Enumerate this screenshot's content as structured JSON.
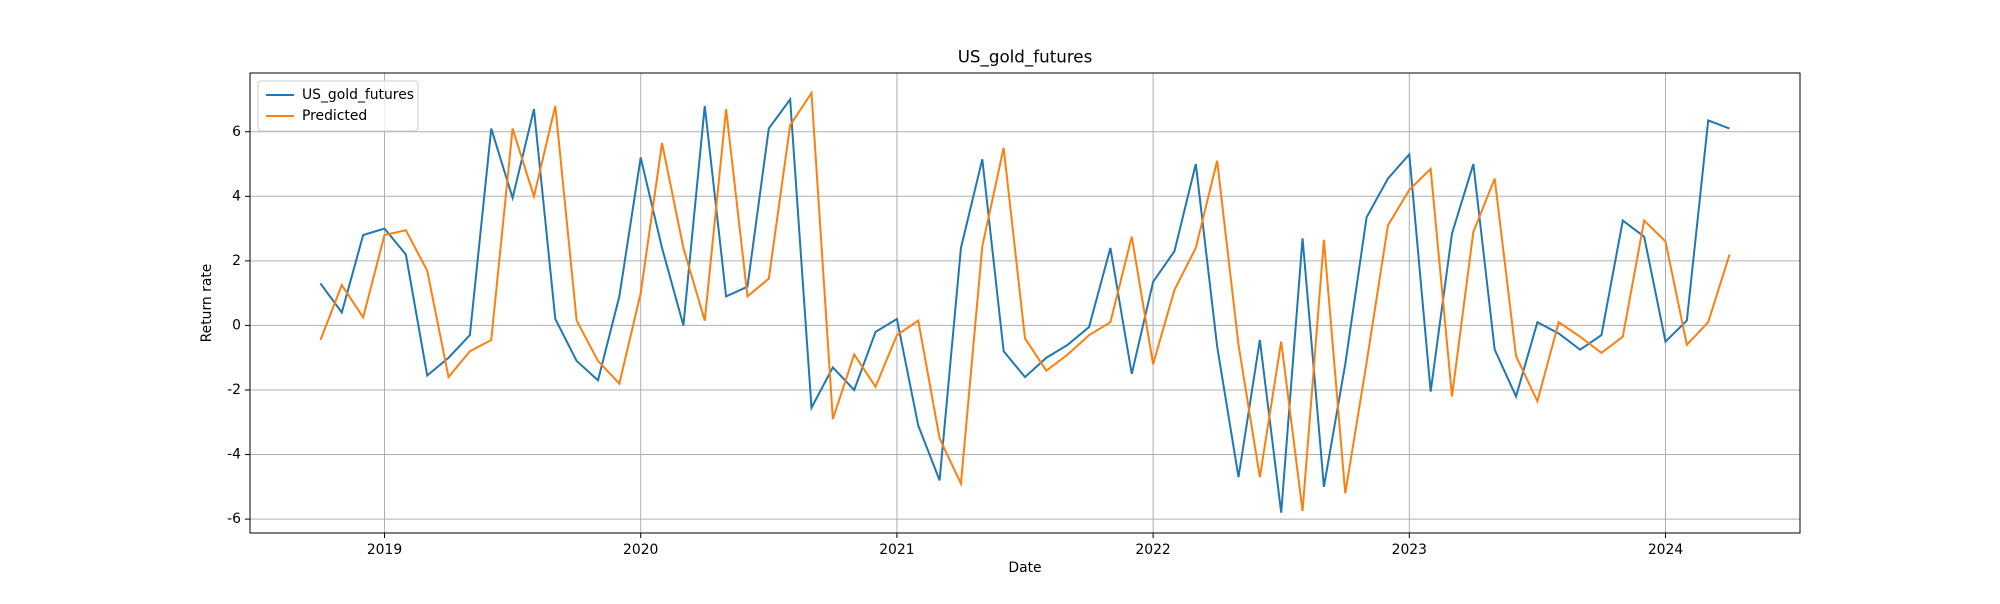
{
  "chart_data": {
    "type": "line",
    "title": "US_gold_futures",
    "xlabel": "Date",
    "ylabel": "Return rate",
    "x": [
      "2018-10",
      "2018-11",
      "2018-12",
      "2019-01",
      "2019-02",
      "2019-03",
      "2019-04",
      "2019-05",
      "2019-06",
      "2019-07",
      "2019-08",
      "2019-09",
      "2019-10",
      "2019-11",
      "2019-12",
      "2020-01",
      "2020-02",
      "2020-03",
      "2020-04",
      "2020-05",
      "2020-06",
      "2020-07",
      "2020-08",
      "2020-09",
      "2020-10",
      "2020-11",
      "2020-12",
      "2021-01",
      "2021-02",
      "2021-03",
      "2021-04",
      "2021-05",
      "2021-06",
      "2021-07",
      "2021-08",
      "2021-09",
      "2021-10",
      "2021-11",
      "2021-12",
      "2022-01",
      "2022-02",
      "2022-03",
      "2022-04",
      "2022-05",
      "2022-06",
      "2022-07",
      "2022-08",
      "2022-09",
      "2022-10",
      "2022-11",
      "2022-12",
      "2023-01",
      "2023-02",
      "2023-03",
      "2023-04",
      "2023-05",
      "2023-06",
      "2023-07",
      "2023-08",
      "2023-09",
      "2023-10",
      "2023-11",
      "2023-12",
      "2024-01",
      "2024-02",
      "2024-03",
      "2024-04"
    ],
    "series": [
      {
        "name": "US_gold_futures",
        "color": "#1f77b4",
        "values": [
          1.3,
          0.4,
          2.8,
          3.0,
          2.2,
          -1.55,
          -1.0,
          -0.3,
          6.1,
          3.95,
          6.7,
          0.2,
          -1.1,
          -1.7,
          0.9,
          5.2,
          2.4,
          0.0,
          6.8,
          0.9,
          1.2,
          6.1,
          7.0,
          -2.55,
          -1.3,
          -2.0,
          -0.2,
          0.2,
          -3.1,
          -4.8,
          2.4,
          5.15,
          -0.8,
          -1.6,
          -1.0,
          -0.6,
          -0.05,
          2.4,
          -1.5,
          1.35,
          2.3,
          5.0,
          -0.65,
          -4.7,
          -0.45,
          -5.8,
          2.7,
          -5.0,
          -1.2,
          3.35,
          4.55,
          5.3,
          -2.05,
          2.85,
          5.0,
          -0.75,
          -2.2,
          0.1,
          -0.25,
          -0.75,
          -0.3,
          3.25,
          2.75,
          -0.5,
          0.15,
          6.35,
          6.1
        ]
      },
      {
        "name": "Predicted",
        "color": "#ff7f0e",
        "values": [
          -0.45,
          1.25,
          0.25,
          2.8,
          2.95,
          1.7,
          -1.6,
          -0.8,
          -0.45,
          6.1,
          4.0,
          6.8,
          0.15,
          -1.1,
          -1.8,
          1.0,
          5.65,
          2.4,
          0.15,
          6.7,
          0.9,
          1.45,
          6.2,
          7.2,
          -2.9,
          -0.9,
          -1.9,
          -0.3,
          0.15,
          -3.5,
          -4.9,
          2.45,
          5.5,
          -0.4,
          -1.4,
          -0.9,
          -0.3,
          0.1,
          2.75,
          -1.2,
          1.1,
          2.4,
          5.1,
          -0.6,
          -4.7,
          -0.5,
          -5.75,
          2.65,
          -5.2,
          -1.15,
          3.1,
          4.2,
          4.85,
          -2.2,
          2.9,
          4.55,
          -0.95,
          -2.35,
          0.1,
          -0.35,
          -0.85,
          -0.35,
          3.25,
          2.6,
          -0.6,
          0.1,
          2.2
        ]
      }
    ],
    "xticks": [
      {
        "value": "2019-01",
        "label": "2019"
      },
      {
        "value": "2020-01",
        "label": "2020"
      },
      {
        "value": "2021-01",
        "label": "2021"
      },
      {
        "value": "2022-01",
        "label": "2022"
      },
      {
        "value": "2023-01",
        "label": "2023"
      },
      {
        "value": "2024-01",
        "label": "2024"
      }
    ],
    "ylim": [
      -6.43,
      7.82
    ],
    "yticks": [
      -6,
      -4,
      -2,
      0,
      2,
      4,
      6
    ],
    "grid": true,
    "legend": "upper left"
  }
}
